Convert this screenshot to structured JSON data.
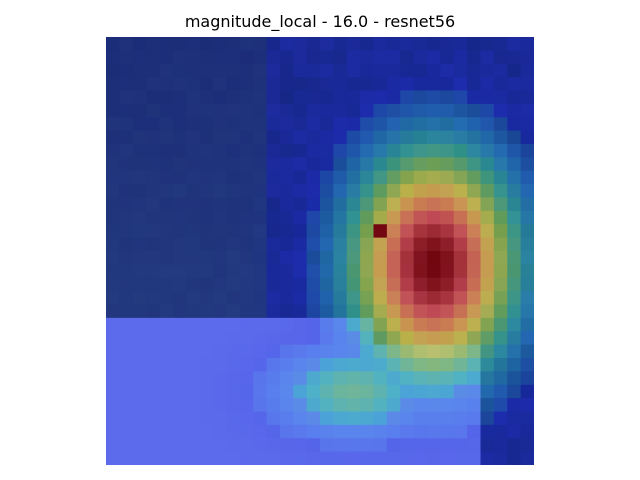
{
  "figure": {
    "title": "magnitude_local - 16.0 - resnet56"
  },
  "image": {
    "content": "heatmap-overlay",
    "grid": [
      32,
      32
    ]
  },
  "colors": {
    "background": "#ffffff",
    "heat_peak": "#8a0000",
    "heat_high": "#e85a5a",
    "heat_mid": "#e3d84a",
    "heat_low": "#3fd6a8",
    "cool": "#1a2fd8",
    "foreground_tint": "#6a78f0",
    "dark_region": "#1c2a44"
  }
}
